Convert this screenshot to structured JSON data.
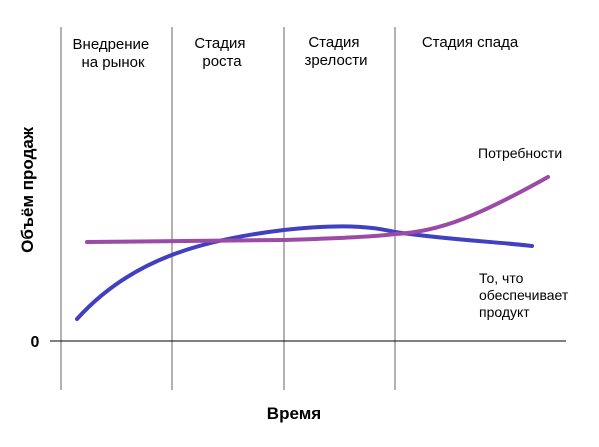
{
  "stages": [
    {
      "lines": [
        "Внедрение",
        "на рынок"
      ]
    },
    {
      "lines": [
        "Стадия",
        "роста"
      ]
    },
    {
      "lines": [
        "Стадия",
        "зрелости"
      ]
    },
    {
      "lines": [
        "Стадия спада"
      ]
    }
  ],
  "axes": {
    "x_title": "Время",
    "y_title": "Объём продаж",
    "zero_label": "0"
  },
  "curves": {
    "needs": {
      "label": "Потребности",
      "color": "#9b4aa5"
    },
    "product": {
      "label_lines": [
        "То, что",
        "обеспечивает",
        "продукт"
      ],
      "color": "#4040c0"
    }
  },
  "colors": {
    "axis": "#000000",
    "divider": "#666666"
  }
}
